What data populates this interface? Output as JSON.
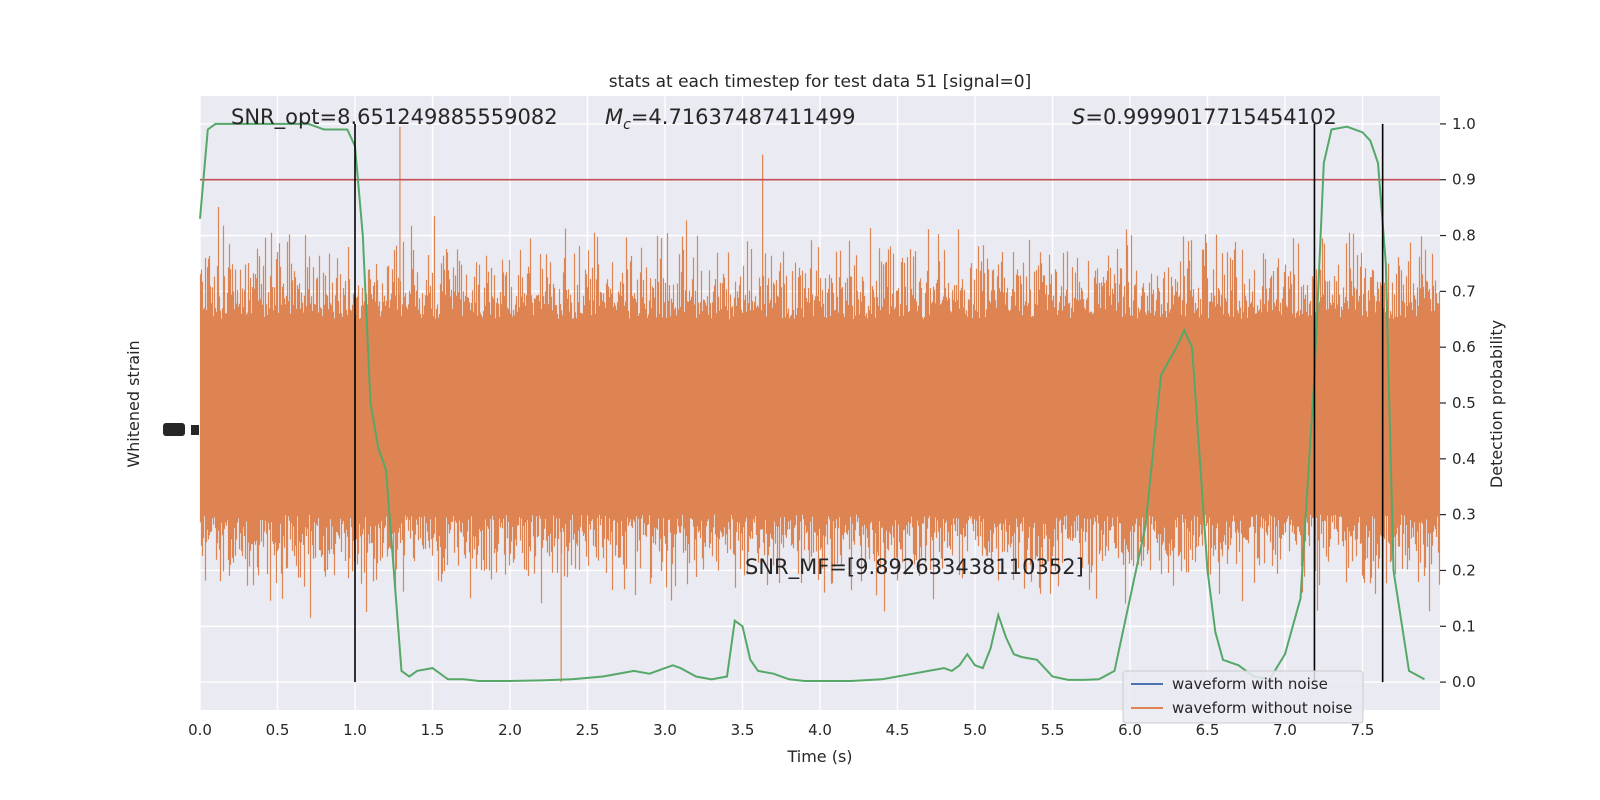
{
  "chart_data": {
    "type": "line",
    "title": "stats at each timestep for test data 51 [signal=0]",
    "xlabel": "Time (s)",
    "ylabel_left": "Whitened strain",
    "ylabel_right": "Detection probability",
    "xlim": [
      0.0,
      8.0
    ],
    "ylim_right": [
      -0.05,
      1.05
    ],
    "x_ticks": [
      "0.0",
      "0.5",
      "1.0",
      "1.5",
      "2.0",
      "2.5",
      "3.0",
      "3.5",
      "4.0",
      "4.5",
      "5.0",
      "5.5",
      "6.0",
      "6.5",
      "7.0",
      "7.5"
    ],
    "x_tick_values": [
      0.0,
      0.5,
      1.0,
      1.5,
      2.0,
      2.5,
      3.0,
      3.5,
      4.0,
      4.5,
      5.0,
      5.5,
      6.0,
      6.5,
      7.0,
      7.5
    ],
    "y_ticks_right": [
      "0.0",
      "0.1",
      "0.2",
      "0.3",
      "0.4",
      "0.5",
      "0.6",
      "0.7",
      "0.8",
      "0.9",
      "1.0"
    ],
    "y_tick_values_right": [
      0.0,
      0.1,
      0.2,
      0.3,
      0.4,
      0.5,
      0.6,
      0.7,
      0.8,
      0.9,
      1.0
    ],
    "grid": true,
    "legend_position": "lower-right",
    "threshold": 0.9,
    "vertical_lines_x": [
      1.0,
      7.19,
      7.63
    ],
    "annotations": {
      "snr_opt": "SNR_opt=8.651249885559082",
      "mc_symbol": "M",
      "mc_sub": "c",
      "mc_value": "=4.71637487411499",
      "s_symbol": "S",
      "s_value": "=0.9999017715454102",
      "snr_mf": "SNR_MF=[9.892633438110352]"
    },
    "series": [
      {
        "name": "waveform with noise",
        "color": "#4c72b0",
        "values": []
      },
      {
        "name": "waveform without noise",
        "color": "#dd8452",
        "band_range_prob_units": [
          0.3,
          0.65
        ],
        "peak_range_prob_units": [
          0.0,
          1.0
        ]
      },
      {
        "name": "detection probability",
        "color": "#55a868",
        "x": [
          0.0,
          0.05,
          0.1,
          0.2,
          0.3,
          0.4,
          0.5,
          0.6,
          0.7,
          0.8,
          0.9,
          0.95,
          1.0,
          1.05,
          1.1,
          1.15,
          1.2,
          1.25,
          1.3,
          1.35,
          1.4,
          1.5,
          1.6,
          1.7,
          1.8,
          2.0,
          2.2,
          2.4,
          2.6,
          2.8,
          2.9,
          3.0,
          3.05,
          3.1,
          3.2,
          3.3,
          3.4,
          3.45,
          3.5,
          3.55,
          3.6,
          3.7,
          3.8,
          3.9,
          4.0,
          4.2,
          4.4,
          4.6,
          4.7,
          4.8,
          4.85,
          4.9,
          4.95,
          5.0,
          5.05,
          5.1,
          5.15,
          5.2,
          5.25,
          5.3,
          5.4,
          5.5,
          5.6,
          5.7,
          5.8,
          5.9,
          6.0,
          6.1,
          6.2,
          6.3,
          6.35,
          6.4,
          6.45,
          6.5,
          6.55,
          6.6,
          6.7,
          6.8,
          6.9,
          7.0,
          7.1,
          7.19,
          7.25,
          7.3,
          7.4,
          7.5,
          7.55,
          7.6,
          7.65,
          7.7,
          7.8,
          7.9
        ],
        "values": [
          0.83,
          0.99,
          1.0,
          1.0,
          1.0,
          1.0,
          1.0,
          1.0,
          1.0,
          0.99,
          0.99,
          0.99,
          0.96,
          0.8,
          0.5,
          0.42,
          0.38,
          0.2,
          0.02,
          0.01,
          0.02,
          0.025,
          0.005,
          0.005,
          0.002,
          0.002,
          0.003,
          0.005,
          0.01,
          0.02,
          0.015,
          0.025,
          0.03,
          0.025,
          0.01,
          0.005,
          0.01,
          0.11,
          0.1,
          0.04,
          0.02,
          0.015,
          0.005,
          0.002,
          0.002,
          0.002,
          0.005,
          0.015,
          0.02,
          0.025,
          0.02,
          0.03,
          0.05,
          0.03,
          0.025,
          0.06,
          0.12,
          0.08,
          0.05,
          0.045,
          0.04,
          0.01,
          0.004,
          0.004,
          0.005,
          0.02,
          0.15,
          0.28,
          0.55,
          0.6,
          0.63,
          0.6,
          0.4,
          0.2,
          0.09,
          0.04,
          0.03,
          0.01,
          0.005,
          0.05,
          0.15,
          0.55,
          0.93,
          0.99,
          0.995,
          0.985,
          0.97,
          0.93,
          0.75,
          0.2,
          0.02,
          0.005
        ]
      }
    ]
  }
}
